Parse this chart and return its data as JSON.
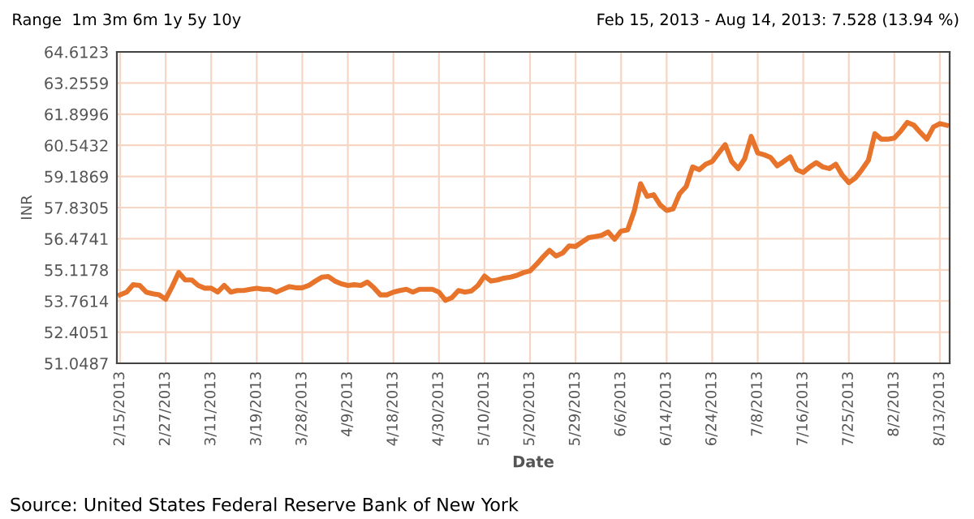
{
  "chart_data": {
    "type": "line",
    "xlabel": "Date",
    "ylabel": "INR",
    "annotations": [
      "Range  1m 3m 6m 1y 5y 10y",
      "Feb 15, 2013 - Aug 14, 2013: 7.528 (13.94 %)",
      "Source: United States Federal Reserve Bank of New York"
    ],
    "categories": [
      "2/15/2013",
      null,
      null,
      null,
      null,
      null,
      null,
      "2/27/2013",
      null,
      null,
      null,
      null,
      null,
      null,
      "3/11/2013",
      null,
      null,
      null,
      null,
      null,
      null,
      "3/19/2013",
      null,
      null,
      null,
      null,
      null,
      null,
      "3/28/2013",
      null,
      null,
      null,
      null,
      null,
      null,
      "4/9/2013",
      null,
      null,
      null,
      null,
      null,
      null,
      "4/18/2013",
      null,
      null,
      null,
      null,
      null,
      null,
      "4/30/2013",
      null,
      null,
      null,
      null,
      null,
      null,
      "5/10/2013",
      null,
      null,
      null,
      null,
      null,
      null,
      "5/20/2013",
      null,
      null,
      null,
      null,
      null,
      null,
      "5/29/2013",
      null,
      null,
      null,
      null,
      null,
      null,
      "6/6/2013",
      null,
      null,
      null,
      null,
      null,
      null,
      "6/14/2013",
      null,
      null,
      null,
      null,
      null,
      null,
      "6/24/2013",
      null,
      null,
      null,
      null,
      null,
      null,
      "7/8/2013",
      null,
      null,
      null,
      null,
      null,
      null,
      "7/16/2013",
      null,
      null,
      null,
      null,
      null,
      null,
      "7/25/2013",
      null,
      null,
      null,
      null,
      null,
      null,
      "8/2/2013",
      null,
      null,
      null,
      null,
      null,
      null,
      "8/13/2013",
      null
    ],
    "series": [
      {
        "color": "#e8732a",
        "values": [
          54.03,
          54.15,
          54.47,
          54.44,
          54.15,
          54.08,
          54.03,
          53.84,
          54.39,
          55.0,
          54.68,
          54.68,
          54.44,
          54.32,
          54.32,
          54.15,
          54.44,
          54.15,
          54.22,
          54.22,
          54.27,
          54.32,
          54.27,
          54.27,
          54.15,
          54.27,
          54.39,
          54.34,
          54.34,
          54.44,
          54.63,
          54.8,
          54.83,
          54.63,
          54.51,
          54.44,
          54.47,
          54.44,
          54.59,
          54.34,
          54.03,
          54.03,
          54.15,
          54.22,
          54.27,
          54.15,
          54.27,
          54.27,
          54.27,
          54.15,
          53.79,
          53.91,
          54.22,
          54.15,
          54.2,
          54.44,
          54.85,
          54.63,
          54.68,
          54.76,
          54.8,
          54.88,
          55.0,
          55.07,
          55.36,
          55.68,
          55.97,
          55.72,
          55.85,
          56.16,
          56.14,
          56.33,
          56.52,
          56.57,
          56.62,
          56.77,
          56.45,
          56.81,
          56.86,
          57.66,
          58.87,
          58.32,
          58.39,
          57.95,
          57.71,
          57.78,
          58.44,
          58.75,
          59.6,
          59.48,
          59.72,
          59.84,
          60.21,
          60.57,
          59.84,
          59.53,
          59.96,
          60.93,
          60.21,
          60.13,
          60.01,
          59.65,
          59.84,
          60.04,
          59.48,
          59.36,
          59.6,
          59.79,
          59.6,
          59.53,
          59.72,
          59.24,
          58.92,
          59.12,
          59.48,
          59.89,
          61.05,
          60.81,
          60.81,
          60.86,
          61.17,
          61.54,
          61.42,
          61.1,
          60.81,
          61.34,
          61.49,
          61.42
        ]
      }
    ],
    "ylim": [
      51.0487,
      64.6123
    ],
    "yticks": [
      51.0487,
      52.4051,
      53.7614,
      55.1178,
      56.4741,
      57.8305,
      59.1869,
      60.5432,
      61.8996,
      63.2559,
      64.6123
    ],
    "grid": true,
    "line_style": "solid",
    "marker": "none",
    "legend": false
  }
}
